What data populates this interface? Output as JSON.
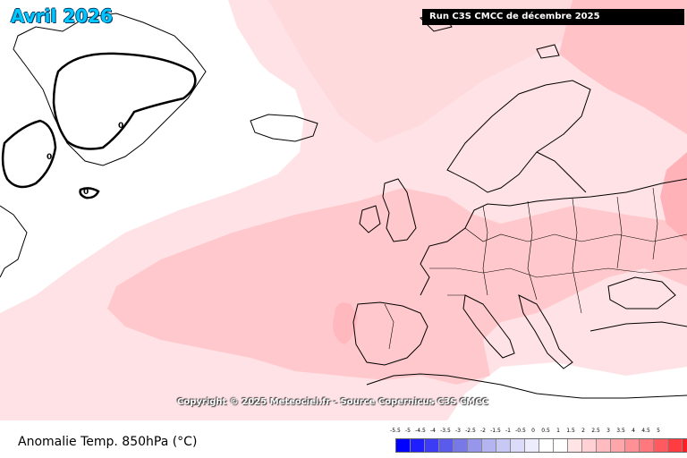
{
  "title": "Avril 2026",
  "run_label": "Run C3S CMCC de décembre 2025",
  "copyright": "Copyright © 2025 Meteociel.fr - Source Copernicus C3S CMCC",
  "footer_title": "Anomalie Temp. 850hPa (°C)",
  "contour_labels": [
    "0",
    "0",
    "0"
  ],
  "legend": {
    "labels": [
      "-5.5",
      "-5",
      "-4.5",
      "-4",
      "-3.5",
      "-3",
      "-2.5",
      "-2",
      "-1.5",
      "-1",
      "-0.5",
      "0",
      "0.5",
      "1",
      "1.5",
      "2",
      "2.5",
      "3",
      "3.5",
      "4",
      "4.5",
      "5"
    ],
    "colors": [
      "#0000ff",
      "#1e1eff",
      "#3c3cf5",
      "#5a5aeb",
      "#7878e6",
      "#9696eb",
      "#b4b4f0",
      "#c8c8f5",
      "#dcdcfa",
      "#ececfd",
      "#ffffff",
      "#ffffff",
      "#ffe4e6",
      "#ffd0d4",
      "#ffbcc0",
      "#ffa6ab",
      "#ff9095",
      "#ff787e",
      "#ff5a60",
      "#ff3c42",
      "#ff1e24",
      "#ff0000"
    ]
  }
}
